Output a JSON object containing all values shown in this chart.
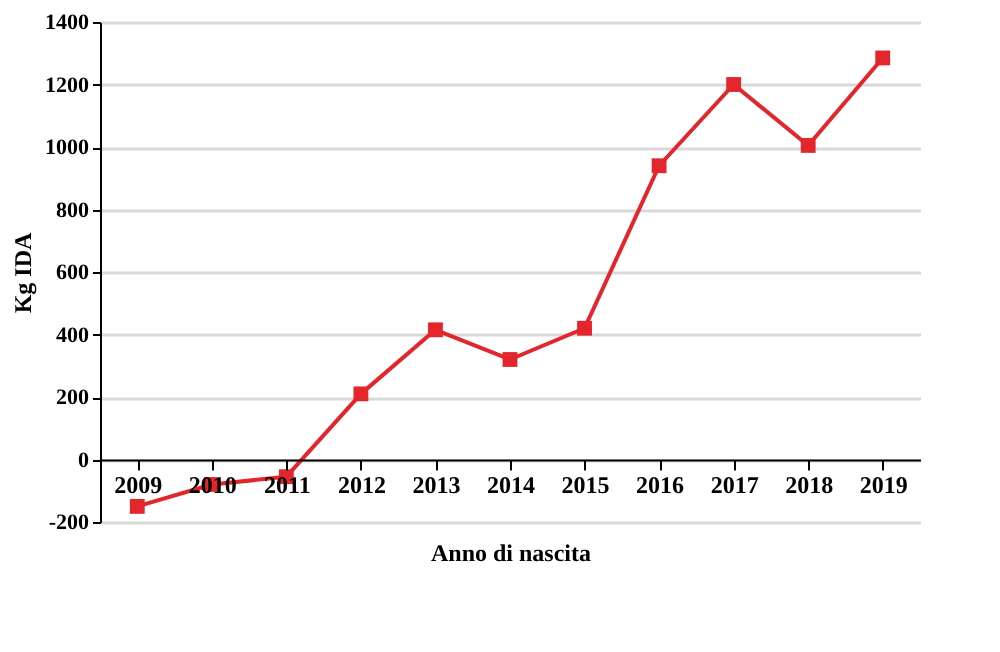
{
  "chart_data": {
    "type": "line",
    "categories": [
      "2009",
      "2010",
      "2011",
      "2012",
      "2013",
      "2014",
      "2015",
      "2016",
      "2017",
      "2018",
      "2019"
    ],
    "series": [
      {
        "color": "#e3262b",
        "values": [
          -150,
          -80,
          -55,
          210,
          415,
          320,
          420,
          940,
          1200,
          1005,
          1285
        ]
      }
    ],
    "xlabel": "Anno di nascita",
    "ylabel": "Kg IDA",
    "ylim": [
      -200,
      1400
    ],
    "yticks": [
      -200,
      0,
      200,
      400,
      600,
      800,
      1000,
      1200,
      1400
    ],
    "grid": "y",
    "marker": "square",
    "legend": false
  }
}
